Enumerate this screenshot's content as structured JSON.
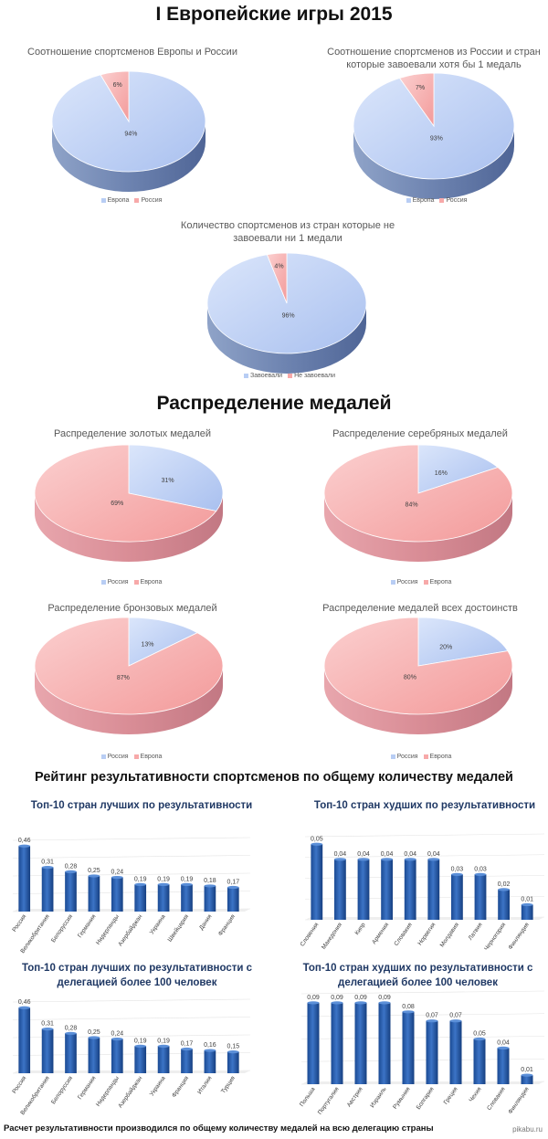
{
  "title_main": "I Европейские игры 2015",
  "title_medals": "Распределение медалей",
  "title_rating": "Рейтинг результативности спортсменов по общему количеству медалей",
  "footer": "Расчет результативности производился по общему количеству медалей на всю делегацию страны",
  "credit": "pikabu.ru",
  "colors": {
    "blue": "#b8cdf4",
    "red": "#f7a9a9",
    "bar": "#2e5ea8"
  },
  "chart_data": [
    {
      "type": "pie",
      "title": "Соотношение спортсменов Европы и России",
      "categories": [
        "Европа",
        "Россия"
      ],
      "values": [
        94,
        6
      ],
      "labels": [
        "94%",
        "6%"
      ],
      "legend": [
        "Европа",
        "Россия"
      ]
    },
    {
      "type": "pie",
      "title": "Соотношение спортсменов из России и стран которые завоевали хотя бы 1 медаль",
      "categories": [
        "Европа",
        "Россия"
      ],
      "values": [
        93,
        7
      ],
      "labels": [
        "93%",
        "7%"
      ],
      "legend": [
        "Европа",
        "Россия"
      ]
    },
    {
      "type": "pie",
      "title": "Количество спортсменов из стран которые не завоевали ни 1 медали",
      "categories": [
        "Завоевали",
        "Не завоевали"
      ],
      "values": [
        96,
        4
      ],
      "labels": [
        "96%",
        "4%"
      ],
      "legend": [
        "Завоевали",
        "Не завоевали"
      ]
    },
    {
      "type": "pie",
      "title": "Распределение золотых медалей",
      "categories": [
        "Россия",
        "Европа"
      ],
      "values": [
        31,
        69
      ],
      "labels": [
        "31%",
        "69%"
      ],
      "legend": [
        "Россия",
        "Европа"
      ]
    },
    {
      "type": "pie",
      "title": "Распределение серебряных медалей",
      "categories": [
        "Россия",
        "Европа"
      ],
      "values": [
        16,
        84
      ],
      "labels": [
        "16%",
        "84%"
      ],
      "legend": [
        "Россия",
        "Европа"
      ]
    },
    {
      "type": "pie",
      "title": "Распределение бронзовых медалей",
      "categories": [
        "Россия",
        "Европа"
      ],
      "values": [
        13,
        87
      ],
      "labels": [
        "13%",
        "87%"
      ],
      "legend": [
        "Россия",
        "Европа"
      ]
    },
    {
      "type": "pie",
      "title": "Распределение медалей всех достоинств",
      "categories": [
        "Россия",
        "Европа"
      ],
      "values": [
        20,
        80
      ],
      "labels": [
        "20%",
        "80%"
      ],
      "legend": [
        "Россия",
        "Европа"
      ]
    },
    {
      "type": "bar",
      "title": "Топ-10 стран лучших по результативности",
      "categories": [
        "Россия",
        "Великобритания",
        "Белоруссия",
        "Германия",
        "Нидерланды",
        "Азербайджан",
        "Украина",
        "Швейцария",
        "Дания",
        "Франция"
      ],
      "values": [
        0.46,
        0.31,
        0.28,
        0.25,
        0.24,
        0.19,
        0.19,
        0.19,
        0.18,
        0.17
      ],
      "labels": [
        "0,46",
        "0,31",
        "0,28",
        "0,25",
        "0,24",
        "0,19",
        "0,19",
        "0,19",
        "0,18",
        "0,17"
      ],
      "ylim": [
        0,
        0.5
      ],
      "grid": true
    },
    {
      "type": "bar",
      "title": "Топ-10 стран худших по результативности",
      "categories": [
        "Словения",
        "Македония",
        "Кипр",
        "Армения",
        "Словакия",
        "Норвегия",
        "Молдавия",
        "Латвия",
        "Черногория",
        "Финляндия"
      ],
      "values": [
        0.05,
        0.04,
        0.04,
        0.04,
        0.04,
        0.04,
        0.03,
        0.03,
        0.02,
        0.01
      ],
      "labels": [
        "0,05",
        "0,04",
        "0,04",
        "0,04",
        "0,04",
        "0,04",
        "0,03",
        "0,03",
        "0,02",
        "0,01"
      ],
      "ylim": [
        0,
        0.055
      ],
      "grid": true
    },
    {
      "type": "bar",
      "title": "Топ-10 стран лучших по результативности с делегацией более 100 человек",
      "categories": [
        "Россия",
        "Великобритания",
        "Белоруссия",
        "Германия",
        "Нидерланды",
        "Азербайджан",
        "Украина",
        "Франция",
        "Италия",
        "Турция"
      ],
      "values": [
        0.46,
        0.31,
        0.28,
        0.25,
        0.24,
        0.19,
        0.19,
        0.17,
        0.16,
        0.15
      ],
      "labels": [
        "0,46",
        "0,31",
        "0,28",
        "0,25",
        "0,24",
        "0,19",
        "0,19",
        "0,17",
        "0,16",
        "0,15"
      ],
      "ylim": [
        0,
        0.5
      ],
      "grid": true
    },
    {
      "type": "bar",
      "title": "Топ-10 стран худших по результативности с делегацией более 100 человек",
      "categories": [
        "Польша",
        "Португалия",
        "Австрия",
        "Израиль",
        "Румыния",
        "Болгария",
        "Греция",
        "Чехия",
        "Словакия",
        "Финляндия"
      ],
      "values": [
        0.09,
        0.09,
        0.09,
        0.09,
        0.08,
        0.07,
        0.07,
        0.05,
        0.04,
        0.01
      ],
      "labels": [
        "0,09",
        "0,09",
        "0,09",
        "0,09",
        "0,08",
        "0,07",
        "0,07",
        "0,05",
        "0,04",
        "0,01"
      ],
      "ylim": [
        0,
        0.1
      ],
      "grid": true
    }
  ]
}
